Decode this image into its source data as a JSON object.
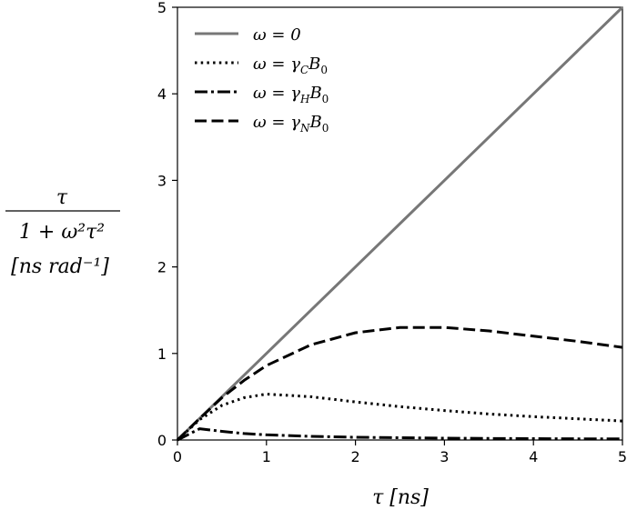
{
  "chart_data": {
    "type": "line",
    "xlabel": "τ [ns]",
    "ylabel_fraction_numerator": "τ",
    "ylabel_fraction_denominator": "1 + ω²τ²",
    "ylabel_units": "[ns rad⁻¹]",
    "xlim": [
      0,
      5
    ],
    "ylim": [
      0,
      5
    ],
    "x_ticks": [
      "0",
      "1",
      "2",
      "3",
      "4",
      "5"
    ],
    "y_ticks": [
      "0",
      "1",
      "2",
      "3",
      "4",
      "5"
    ],
    "grid": false,
    "legend_position": "top-left",
    "x": [
      0,
      0.25,
      0.5,
      0.75,
      1.0,
      1.5,
      2.0,
      2.5,
      3.0,
      3.5,
      4.0,
      4.5,
      5.0
    ],
    "series": [
      {
        "name": "ω = 0",
        "style": "solid",
        "color": "#777777",
        "values": [
          0,
          0.25,
          0.5,
          0.75,
          1.0,
          1.5,
          2.0,
          2.5,
          3.0,
          3.5,
          4.0,
          4.5,
          5.0
        ]
      },
      {
        "name": "ω = γCB0",
        "style": "dotted",
        "color": "#000000",
        "values": [
          0,
          0.235,
          0.4,
          0.49,
          0.53,
          0.5,
          0.44,
          0.385,
          0.34,
          0.3,
          0.27,
          0.245,
          0.22
        ]
      },
      {
        "name": "ω = γHB0",
        "style": "dashdot",
        "color": "#000000",
        "values": [
          0,
          0.13,
          0.1,
          0.075,
          0.06,
          0.042,
          0.032,
          0.026,
          0.021,
          0.018,
          0.016,
          0.014,
          0.013
        ]
      },
      {
        "name": "ω = γNB0",
        "style": "dashed",
        "color": "#000000",
        "values": [
          0,
          0.248,
          0.49,
          0.69,
          0.86,
          1.1,
          1.24,
          1.3,
          1.3,
          1.26,
          1.2,
          1.14,
          1.07
        ]
      }
    ],
    "legend": [
      {
        "prefix": "ω = ",
        "main": "0",
        "sub": "",
        "tail": ""
      },
      {
        "prefix": "ω = ",
        "main": "γ",
        "sub": "C",
        "tail": "B0"
      },
      {
        "prefix": "ω = ",
        "main": "γ",
        "sub": "H",
        "tail": "B0"
      },
      {
        "prefix": "ω = ",
        "main": "γ",
        "sub": "N",
        "tail": "B0"
      }
    ]
  }
}
